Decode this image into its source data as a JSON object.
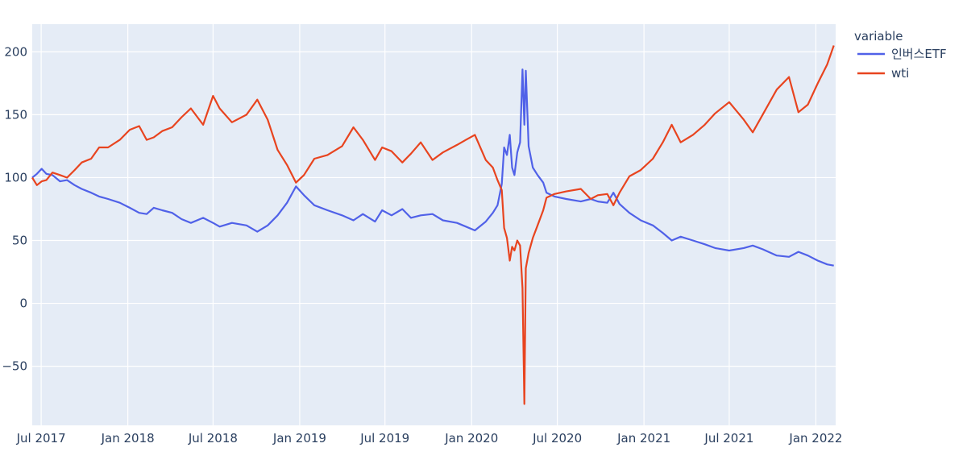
{
  "chart_data": {
    "type": "line",
    "xlim": [
      "2017-06-12",
      "2022-02-12"
    ],
    "ylim": [
      -97,
      222
    ],
    "x_tick_labels": [
      "Jul 2017",
      "Jan 2018",
      "Jul 2018",
      "Jan 2019",
      "Jul 2019",
      "Jan 2020",
      "Jul 2020",
      "Jan 2021",
      "Jul 2021",
      "Jan 2022"
    ],
    "x_tick_dates": [
      "2017-07-01",
      "2018-01-01",
      "2018-07-01",
      "2019-01-01",
      "2019-07-01",
      "2020-01-01",
      "2020-07-01",
      "2021-01-01",
      "2021-07-01",
      "2022-01-01"
    ],
    "y_tick_labels": [
      "−50",
      "0",
      "50",
      "100",
      "150",
      "200"
    ],
    "y_tick_values": [
      -50,
      0,
      50,
      100,
      150,
      200
    ],
    "grid": true,
    "legend": {
      "title": "variable",
      "placement": "right"
    },
    "series": [
      {
        "name": "인버스ETF",
        "color": "#5061e8",
        "points": [
          [
            "2017-06-12",
            100
          ],
          [
            "2017-06-22",
            103
          ],
          [
            "2017-07-02",
            107
          ],
          [
            "2017-07-12",
            103
          ],
          [
            "2017-07-25",
            102
          ],
          [
            "2017-08-10",
            97
          ],
          [
            "2017-08-25",
            98
          ],
          [
            "2017-09-10",
            94
          ],
          [
            "2017-09-25",
            91
          ],
          [
            "2017-10-15",
            88
          ],
          [
            "2017-11-01",
            85
          ],
          [
            "2017-11-20",
            83
          ],
          [
            "2017-12-15",
            80
          ],
          [
            "2018-01-05",
            76
          ],
          [
            "2018-01-25",
            72
          ],
          [
            "2018-02-10",
            71
          ],
          [
            "2018-02-25",
            76
          ],
          [
            "2018-03-15",
            74
          ],
          [
            "2018-04-05",
            72
          ],
          [
            "2018-04-25",
            67
          ],
          [
            "2018-05-15",
            64
          ],
          [
            "2018-06-10",
            68
          ],
          [
            "2018-07-01",
            64
          ],
          [
            "2018-07-15",
            61
          ],
          [
            "2018-08-10",
            64
          ],
          [
            "2018-09-10",
            62
          ],
          [
            "2018-10-03",
            57
          ],
          [
            "2018-10-25",
            62
          ],
          [
            "2018-11-15",
            70
          ],
          [
            "2018-12-05",
            80
          ],
          [
            "2018-12-24",
            93
          ],
          [
            "2019-01-10",
            86
          ],
          [
            "2019-02-01",
            78
          ],
          [
            "2019-03-01",
            74
          ],
          [
            "2019-04-01",
            70
          ],
          [
            "2019-04-25",
            66
          ],
          [
            "2019-05-15",
            71
          ],
          [
            "2019-06-10",
            65
          ],
          [
            "2019-06-25",
            74
          ],
          [
            "2019-07-15",
            70
          ],
          [
            "2019-08-07",
            75
          ],
          [
            "2019-08-25",
            68
          ],
          [
            "2019-09-15",
            70
          ],
          [
            "2019-10-10",
            71
          ],
          [
            "2019-11-01",
            66
          ],
          [
            "2019-12-01",
            64
          ],
          [
            "2019-12-20",
            61
          ],
          [
            "2020-01-08",
            58
          ],
          [
            "2020-01-31",
            65
          ],
          [
            "2020-02-15",
            72
          ],
          [
            "2020-02-25",
            78
          ],
          [
            "2020-03-05",
            95
          ],
          [
            "2020-03-10",
            124
          ],
          [
            "2020-03-16",
            118
          ],
          [
            "2020-03-22",
            134
          ],
          [
            "2020-03-27",
            108
          ],
          [
            "2020-04-01",
            102
          ],
          [
            "2020-04-07",
            120
          ],
          [
            "2020-04-13",
            128
          ],
          [
            "2020-04-18",
            186
          ],
          [
            "2020-04-22",
            142
          ],
          [
            "2020-04-25",
            185
          ],
          [
            "2020-05-01",
            125
          ],
          [
            "2020-05-10",
            108
          ],
          [
            "2020-05-20",
            102
          ],
          [
            "2020-06-01",
            96
          ],
          [
            "2020-06-08",
            88
          ],
          [
            "2020-06-25",
            85
          ],
          [
            "2020-07-20",
            83
          ],
          [
            "2020-08-20",
            81
          ],
          [
            "2020-09-10",
            83
          ],
          [
            "2020-09-25",
            81
          ],
          [
            "2020-10-15",
            80
          ],
          [
            "2020-10-28",
            88
          ],
          [
            "2020-11-10",
            79
          ],
          [
            "2020-12-01",
            72
          ],
          [
            "2020-12-25",
            66
          ],
          [
            "2021-01-20",
            62
          ],
          [
            "2021-02-10",
            56
          ],
          [
            "2021-03-01",
            50
          ],
          [
            "2021-03-20",
            53
          ],
          [
            "2021-04-15",
            50
          ],
          [
            "2021-05-10",
            47
          ],
          [
            "2021-06-01",
            44
          ],
          [
            "2021-07-01",
            42
          ],
          [
            "2021-08-01",
            44
          ],
          [
            "2021-08-20",
            46
          ],
          [
            "2021-09-10",
            43
          ],
          [
            "2021-10-10",
            38
          ],
          [
            "2021-11-05",
            37
          ],
          [
            "2021-11-25",
            41
          ],
          [
            "2021-12-15",
            38
          ],
          [
            "2022-01-05",
            34
          ],
          [
            "2022-01-25",
            31
          ],
          [
            "2022-02-08",
            30
          ]
        ]
      },
      {
        "name": "wti",
        "color": "#e8441f",
        "points": [
          [
            "2017-06-12",
            100
          ],
          [
            "2017-06-22",
            94
          ],
          [
            "2017-07-02",
            97
          ],
          [
            "2017-07-12",
            98
          ],
          [
            "2017-07-25",
            104
          ],
          [
            "2017-08-10",
            102
          ],
          [
            "2017-08-25",
            100
          ],
          [
            "2017-09-10",
            106
          ],
          [
            "2017-09-25",
            112
          ],
          [
            "2017-10-15",
            115
          ],
          [
            "2017-11-01",
            124
          ],
          [
            "2017-11-20",
            124
          ],
          [
            "2017-12-15",
            130
          ],
          [
            "2018-01-05",
            138
          ],
          [
            "2018-01-25",
            141
          ],
          [
            "2018-02-10",
            130
          ],
          [
            "2018-02-25",
            132
          ],
          [
            "2018-03-15",
            137
          ],
          [
            "2018-04-05",
            140
          ],
          [
            "2018-04-25",
            148
          ],
          [
            "2018-05-15",
            155
          ],
          [
            "2018-06-10",
            142
          ],
          [
            "2018-07-01",
            165
          ],
          [
            "2018-07-15",
            155
          ],
          [
            "2018-08-10",
            144
          ],
          [
            "2018-09-10",
            150
          ],
          [
            "2018-10-03",
            162
          ],
          [
            "2018-10-25",
            146
          ],
          [
            "2018-11-15",
            122
          ],
          [
            "2018-12-05",
            110
          ],
          [
            "2018-12-24",
            96
          ],
          [
            "2019-01-10",
            102
          ],
          [
            "2019-02-01",
            115
          ],
          [
            "2019-03-01",
            118
          ],
          [
            "2019-04-01",
            125
          ],
          [
            "2019-04-25",
            140
          ],
          [
            "2019-05-15",
            130
          ],
          [
            "2019-06-10",
            114
          ],
          [
            "2019-06-25",
            124
          ],
          [
            "2019-07-15",
            121
          ],
          [
            "2019-08-07",
            112
          ],
          [
            "2019-08-25",
            119
          ],
          [
            "2019-09-15",
            128
          ],
          [
            "2019-10-10",
            114
          ],
          [
            "2019-11-01",
            120
          ],
          [
            "2019-12-01",
            126
          ],
          [
            "2019-12-20",
            130
          ],
          [
            "2020-01-08",
            134
          ],
          [
            "2020-01-31",
            114
          ],
          [
            "2020-02-15",
            108
          ],
          [
            "2020-02-25",
            98
          ],
          [
            "2020-03-05",
            90
          ],
          [
            "2020-03-10",
            60
          ],
          [
            "2020-03-16",
            52
          ],
          [
            "2020-03-22",
            34
          ],
          [
            "2020-03-27",
            45
          ],
          [
            "2020-04-01",
            42
          ],
          [
            "2020-04-07",
            50
          ],
          [
            "2020-04-13",
            46
          ],
          [
            "2020-04-18",
            12
          ],
          [
            "2020-04-22",
            -80
          ],
          [
            "2020-04-25",
            28
          ],
          [
            "2020-05-01",
            40
          ],
          [
            "2020-05-10",
            52
          ],
          [
            "2020-05-20",
            62
          ],
          [
            "2020-06-01",
            74
          ],
          [
            "2020-06-08",
            84
          ],
          [
            "2020-06-25",
            87
          ],
          [
            "2020-07-20",
            89
          ],
          [
            "2020-08-20",
            91
          ],
          [
            "2020-09-10",
            83
          ],
          [
            "2020-09-25",
            86
          ],
          [
            "2020-10-15",
            87
          ],
          [
            "2020-10-28",
            78
          ],
          [
            "2020-11-10",
            88
          ],
          [
            "2020-12-01",
            101
          ],
          [
            "2020-12-25",
            106
          ],
          [
            "2021-01-20",
            115
          ],
          [
            "2021-02-10",
            128
          ],
          [
            "2021-03-01",
            142
          ],
          [
            "2021-03-20",
            128
          ],
          [
            "2021-04-15",
            134
          ],
          [
            "2021-05-10",
            142
          ],
          [
            "2021-06-01",
            151
          ],
          [
            "2021-07-01",
            160
          ],
          [
            "2021-08-01",
            146
          ],
          [
            "2021-08-20",
            136
          ],
          [
            "2021-09-10",
            150
          ],
          [
            "2021-10-10",
            170
          ],
          [
            "2021-11-05",
            180
          ],
          [
            "2021-11-25",
            152
          ],
          [
            "2021-12-15",
            158
          ],
          [
            "2022-01-05",
            175
          ],
          [
            "2022-01-25",
            190
          ],
          [
            "2022-02-08",
            205
          ]
        ]
      }
    ]
  }
}
